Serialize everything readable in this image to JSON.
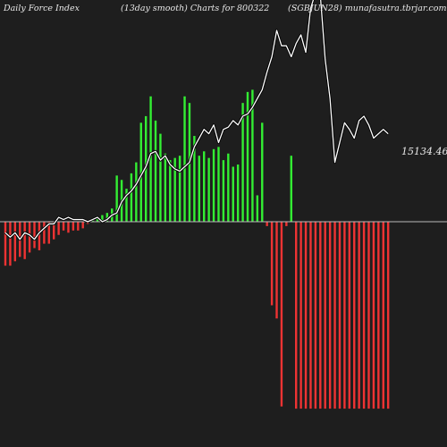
{
  "header": {
    "left": "Daily Force  Index",
    "center": "(13day smooth) Charts for 800322",
    "right": "(SGBJUN28) munafasutra.tbrjar.com"
  },
  "colors": {
    "background": "#1e1e1e",
    "positive_bar": "#33ee33",
    "negative_bar": "#ee3333",
    "line": "#ffffff",
    "zero_line": "#bbbbbb"
  },
  "chart_data": {
    "type": "bar",
    "ylim": [
      -100,
      100
    ],
    "last_value_label": "15134.46",
    "series": [
      {
        "kind": "bars",
        "values": [
          -20,
          -20,
          -18,
          -16,
          -17,
          -14,
          -12,
          -13,
          -10,
          -10,
          -8,
          -6,
          -4,
          -5,
          -4,
          -4,
          -3,
          -1,
          1,
          2,
          3,
          4,
          6,
          21,
          19,
          15,
          22,
          27,
          45,
          48,
          57,
          46,
          40,
          31,
          28,
          29,
          30,
          57,
          54,
          39,
          30,
          32,
          29,
          33,
          34,
          28,
          31,
          25,
          26,
          54,
          59,
          60,
          12,
          45,
          -2,
          -38,
          -44,
          -84,
          -2,
          30,
          -85,
          -85,
          -85,
          -85,
          -85,
          -85,
          -85,
          -85,
          -85,
          -85,
          -85,
          -85,
          -85,
          -85,
          -85,
          -85,
          -85,
          -85,
          -85,
          -85
        ]
      },
      {
        "kind": "line",
        "values": [
          -5,
          -7,
          -5,
          -8,
          -5,
          -6,
          -8,
          -5,
          -3,
          -1,
          -1,
          2,
          1,
          2,
          1,
          1,
          1,
          0,
          1,
          2,
          0,
          1,
          3,
          4,
          9,
          12,
          14,
          17,
          21,
          25,
          31,
          32,
          28,
          30,
          26,
          24,
          23,
          25,
          27,
          34,
          38,
          42,
          40,
          44,
          36,
          42,
          43,
          46,
          44,
          48,
          49,
          52,
          56,
          60,
          68,
          75,
          87,
          80,
          80,
          75,
          81,
          85,
          77,
          97,
          104,
          103,
          74,
          56,
          27,
          36,
          45,
          42,
          38,
          46,
          48,
          44,
          38,
          40,
          42,
          40
        ]
      }
    ]
  }
}
